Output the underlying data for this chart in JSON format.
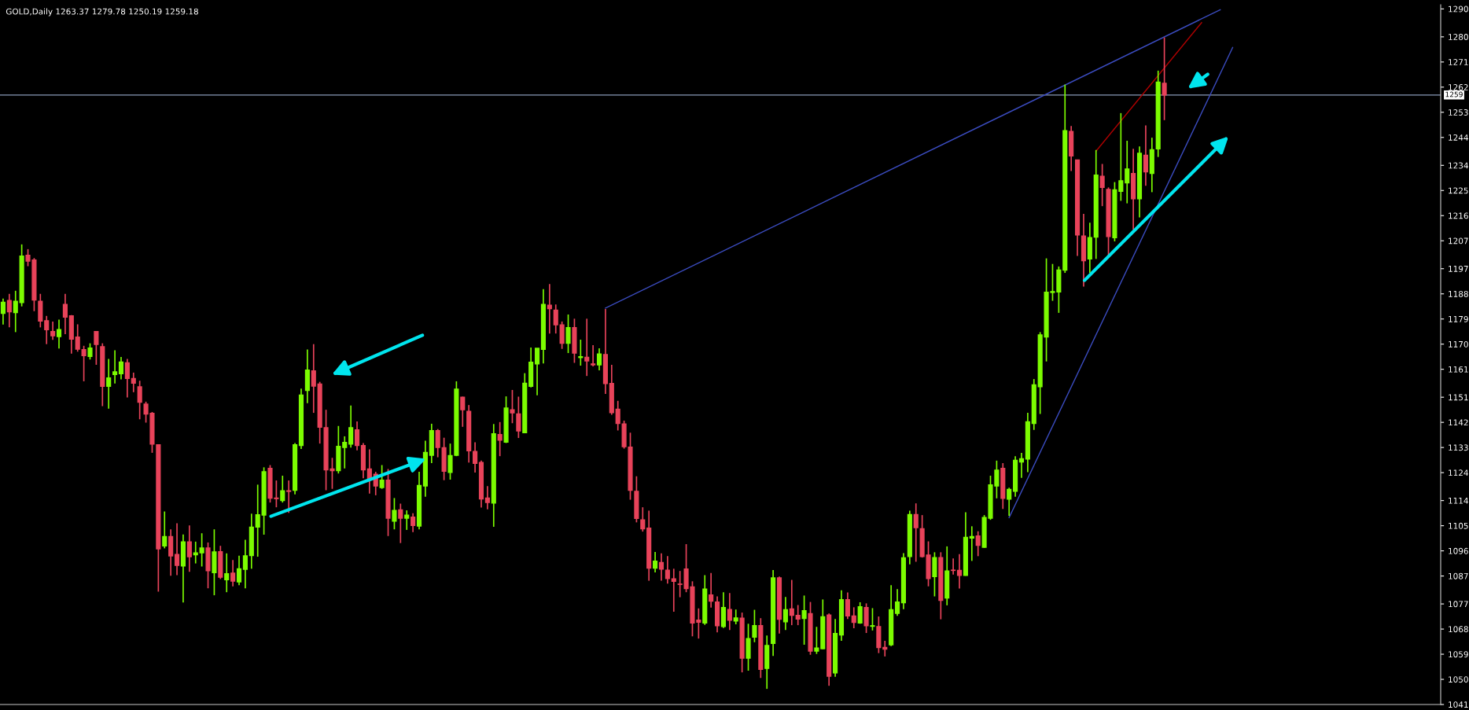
{
  "chart_data": {
    "type": "candlestick",
    "title": "GOLD,Daily 1263.37 1279.78 1250.19 1259.18",
    "categories": [
      null,
      null,
      null,
      null,
      null,
      null,
      null,
      null,
      null,
      null,
      null,
      null,
      null,
      null,
      null,
      null,
      null,
      null,
      null,
      null,
      null,
      null,
      null,
      null,
      null,
      null,
      null,
      null,
      null,
      null,
      null,
      null,
      null,
      null,
      null,
      null,
      null,
      null,
      null,
      null,
      null,
      null,
      null,
      null,
      null,
      null,
      null,
      null,
      null,
      null,
      null,
      null,
      null,
      null,
      null,
      null,
      null,
      null,
      null,
      null,
      null,
      null,
      null,
      null,
      null,
      null,
      null,
      null,
      null,
      null,
      null,
      null,
      null,
      null,
      null,
      null,
      null,
      null,
      null,
      null,
      null,
      null,
      null,
      null,
      null,
      null,
      null,
      null,
      null,
      null,
      null,
      null,
      null,
      null,
      null,
      null,
      null,
      null,
      null,
      null,
      null,
      null,
      null,
      null,
      null,
      null,
      null,
      null,
      null,
      null,
      null,
      null,
      null,
      null,
      null,
      null,
      null,
      null,
      null,
      null,
      null,
      null,
      null,
      null,
      null,
      null,
      null,
      null,
      null,
      null,
      null,
      null,
      null,
      null,
      null,
      null,
      null,
      null,
      null,
      null,
      null,
      null,
      null,
      null,
      null,
      null,
      null,
      null,
      null,
      null,
      null,
      null,
      null,
      null,
      null,
      null,
      null,
      null,
      null,
      null,
      null,
      null,
      null,
      null,
      null,
      null,
      null,
      null,
      null,
      null,
      null,
      null,
      null,
      null,
      null,
      null,
      null,
      null,
      null,
      null,
      null,
      null,
      null,
      null,
      null,
      null,
      null,
      null,
      null,
      null,
      null,
      null,
      null,
      null,
      null,
      null,
      null,
      null,
      null,
      null,
      null,
      null,
      null,
      null,
      null,
      null,
      null,
      null,
      null,
      null,
      null,
      null,
      null,
      null,
      null,
      null,
      null,
      null,
      null,
      null,
      null,
      null,
      null,
      null,
      null,
      null,
      null,
      null,
      null,
      null,
      null,
      null
    ],
    "ohlc": [
      [
        1181.0,
        1186.3,
        1177.0,
        1185.0
      ],
      [
        1185.6,
        1188.0,
        1176.0,
        1181.6
      ],
      [
        1181.3,
        1189.1,
        1174.3,
        1185.3
      ],
      [
        1184.9,
        1205.7,
        1183.5,
        1201.5
      ],
      [
        1201.8,
        1204.0,
        1197.9,
        1199.7
      ],
      [
        1200.1,
        1200.8,
        1181.8,
        1185.8
      ],
      [
        1185.3,
        1188.0,
        1176.0,
        1178.3
      ],
      [
        1178.4,
        1180.1,
        1170.0,
        1175.2
      ],
      [
        1174.5,
        1178.1,
        1171.5,
        1173.0
      ],
      [
        1172.7,
        1178.8,
        1168.4,
        1175.2
      ],
      [
        1184.2,
        1188.0,
        1173.6,
        1179.7
      ],
      [
        1180.1,
        1180.4,
        1166.6,
        1171.8
      ],
      [
        1172.5,
        1177.1,
        1167.3,
        1168.2
      ],
      [
        1168.0,
        1169.4,
        1156.7,
        1165.9
      ],
      [
        1165.6,
        1170.3,
        1164.5,
        1168.6
      ],
      [
        1174.5,
        1174.7,
        1162.6,
        1169.9
      ],
      [
        1169.1,
        1170.3,
        1147.8,
        1154.9
      ],
      [
        1154.9,
        1164.7,
        1146.9,
        1157.9
      ],
      [
        1159.1,
        1167.8,
        1155.9,
        1160.1
      ],
      [
        1159.4,
        1165.4,
        1157.4,
        1163.6
      ],
      [
        1163.3,
        1164.7,
        1150.9,
        1157.7
      ],
      [
        1157.7,
        1159.8,
        1152.8,
        1156.0
      ],
      [
        1154.7,
        1156.9,
        1143.1,
        1149.2
      ],
      [
        1148.5,
        1149.4,
        1141.9,
        1145.0
      ],
      [
        1145.2,
        1145.7,
        1131.1,
        1134.2
      ],
      [
        1134.0,
        1134.0,
        1081.4,
        1096.7
      ],
      [
        1097.8,
        1110.1,
        1096.9,
        1101.1
      ],
      [
        1101.1,
        1103.7,
        1087.1,
        1094.2
      ],
      [
        1094.7,
        1105.9,
        1087.3,
        1090.8
      ],
      [
        1090.6,
        1101.9,
        1077.5,
        1099.2
      ],
      [
        1099.2,
        1105.1,
        1088.5,
        1093.9
      ],
      [
        1094.6,
        1099.3,
        1091.5,
        1095.3
      ],
      [
        1095.3,
        1102.3,
        1090.4,
        1097.0
      ],
      [
        1097.0,
        1099.0,
        1082.6,
        1088.9
      ],
      [
        1088.2,
        1103.7,
        1080.1,
        1095.6
      ],
      [
        1095.7,
        1097.8,
        1085.9,
        1086.6
      ],
      [
        1085.7,
        1095.1,
        1081.2,
        1087.8
      ],
      [
        1088.0,
        1092.7,
        1083.3,
        1085.2
      ],
      [
        1084.9,
        1094.3,
        1083.7,
        1089.6
      ],
      [
        1089.4,
        1100.0,
        1082.6,
        1094.2
      ],
      [
        1094.3,
        1109.3,
        1089.6,
        1104.5
      ],
      [
        1104.5,
        1119.7,
        1093.9,
        1108.9
      ],
      [
        1108.8,
        1125.9,
        1101.8,
        1124.3
      ],
      [
        1125.5,
        1126.7,
        1113.3,
        1114.9
      ],
      [
        1114.9,
        1121.2,
        1111.6,
        1114.7
      ],
      [
        1114.0,
        1122.9,
        1113.3,
        1117.5
      ],
      [
        1117.5,
        1121.2,
        1109.6,
        1117.3
      ],
      [
        1117.7,
        1134.6,
        1116.2,
        1134.0
      ],
      [
        1133.7,
        1154.1,
        1132.5,
        1151.8
      ],
      [
        1153.4,
        1168.1,
        1148.9,
        1160.7
      ],
      [
        1160.4,
        1170.0,
        1145.4,
        1155.0
      ],
      [
        1155.7,
        1156.5,
        1134.4,
        1140.3
      ],
      [
        1140.1,
        1146.5,
        1117.7,
        1125.0
      ],
      [
        1125.3,
        1129.3,
        1118.2,
        1124.7
      ],
      [
        1124.7,
        1140.7,
        1123.7,
        1133.4
      ],
      [
        1133.0,
        1137.0,
        1125.5,
        1134.8
      ],
      [
        1134.2,
        1148.0,
        1133.0,
        1140.1
      ],
      [
        1139.3,
        1142.3,
        1132.0,
        1133.7
      ],
      [
        1133.7,
        1134.6,
        1122.0,
        1125.0
      ],
      [
        1125.3,
        1132.3,
        1116.5,
        1121.8
      ],
      [
        1123.4,
        1124.3,
        1115.9,
        1119.2
      ],
      [
        1118.7,
        1126.7,
        1118.2,
        1121.3
      ],
      [
        1121.3,
        1125.3,
        1101.3,
        1107.7
      ],
      [
        1106.6,
        1114.9,
        1103.7,
        1110.5
      ],
      [
        1110.7,
        1112.9,
        1098.8,
        1107.7
      ],
      [
        1107.7,
        1110.5,
        1103.5,
        1108.8
      ],
      [
        1108.1,
        1109.5,
        1102.7,
        1105.1
      ],
      [
        1104.9,
        1124.3,
        1103.7,
        1119.4
      ],
      [
        1119.2,
        1135.4,
        1115.4,
        1131.2
      ],
      [
        1130.2,
        1141.5,
        1127.4,
        1139.0
      ],
      [
        1139.0,
        1139.6,
        1129.5,
        1133.0
      ],
      [
        1132.9,
        1136.5,
        1121.3,
        1124.5
      ],
      [
        1124.1,
        1134.4,
        1121.5,
        1130.1
      ],
      [
        1130.2,
        1156.7,
        1129.9,
        1153.9
      ],
      [
        1151.0,
        1151.2,
        1140.4,
        1146.5
      ],
      [
        1145.9,
        1148.2,
        1127.6,
        1131.8
      ],
      [
        1131.6,
        1134.9,
        1124.0,
        1127.3
      ],
      [
        1127.6,
        1128.3,
        1111.5,
        1114.6
      ],
      [
        1114.9,
        1119.2,
        1110.9,
        1113.3
      ],
      [
        1113.1,
        1141.4,
        1104.6,
        1137.9
      ],
      [
        1137.6,
        1142.1,
        1129.9,
        1135.6
      ],
      [
        1134.9,
        1151.3,
        1134.6,
        1147.1
      ],
      [
        1146.5,
        1153.6,
        1141.7,
        1145.4
      ],
      [
        1145.0,
        1151.2,
        1136.4,
        1138.9
      ],
      [
        1138.3,
        1159.6,
        1138.1,
        1156.0
      ],
      [
        1154.9,
        1168.8,
        1154.5,
        1163.5
      ],
      [
        1162.9,
        1168.5,
        1151.7,
        1168.5
      ],
      [
        1168.1,
        1189.7,
        1163.1,
        1184.2
      ],
      [
        1183.9,
        1191.5,
        1173.8,
        1182.7
      ],
      [
        1182.2,
        1184.2,
        1173.8,
        1176.9
      ],
      [
        1176.9,
        1178.1,
        1168.3,
        1170.3
      ],
      [
        1170.3,
        1180.6,
        1166.8,
        1175.9
      ],
      [
        1175.9,
        1179.1,
        1163.3,
        1166.8
      ],
      [
        1165.2,
        1171.6,
        1162.3,
        1165.5
      ],
      [
        1165.3,
        1179.1,
        1158.6,
        1164.0
      ],
      [
        1162.9,
        1169.6,
        1162.0,
        1162.6
      ],
      [
        1162.6,
        1168.5,
        1160.6,
        1166.5
      ],
      [
        1166.3,
        1182.6,
        1152.2,
        1155.9
      ],
      [
        1155.9,
        1162.6,
        1144.7,
        1145.5
      ],
      [
        1146.7,
        1149.7,
        1139.1,
        1141.6
      ],
      [
        1141.4,
        1142.6,
        1132.6,
        1133.3
      ],
      [
        1133.1,
        1138.3,
        1114.3,
        1117.7
      ],
      [
        1117.3,
        1122.7,
        1106.2,
        1107.6
      ],
      [
        1107.1,
        1111.6,
        1102.9,
        1103.9
      ],
      [
        1104.1,
        1110.4,
        1085.3,
        1089.8
      ],
      [
        1089.8,
        1095.6,
        1088.3,
        1092.3
      ],
      [
        1091.8,
        1095.1,
        1085.3,
        1089.5
      ],
      [
        1089.1,
        1094.1,
        1084.3,
        1086.1
      ],
      [
        1086.0,
        1089.6,
        1074.2,
        1085.1
      ],
      [
        1084.1,
        1088.8,
        1079.4,
        1084.0
      ],
      [
        1089.5,
        1098.4,
        1081.2,
        1082.5
      ],
      [
        1083.1,
        1085.1,
        1065.4,
        1070.2
      ],
      [
        1071.2,
        1075.4,
        1064.6,
        1070.5
      ],
      [
        1070.2,
        1087.3,
        1069.5,
        1082.3
      ],
      [
        1080.2,
        1088.1,
        1075.7,
        1078.0
      ],
      [
        1077.7,
        1079.7,
        1066.8,
        1069.2
      ],
      [
        1068.9,
        1081.2,
        1068.4,
        1075.7
      ],
      [
        1075.0,
        1080.9,
        1067.7,
        1071.2
      ],
      [
        1070.9,
        1075.0,
        1069.7,
        1072.0
      ],
      [
        1071.9,
        1073.9,
        1052.5,
        1057.6
      ],
      [
        1057.6,
        1069.9,
        1053.1,
        1064.6
      ],
      [
        1065.1,
        1074.9,
        1063.3,
        1069.2
      ],
      [
        1069.2,
        1071.9,
        1050.5,
        1053.6
      ],
      [
        1053.9,
        1065.7,
        1046.6,
        1062.1
      ],
      [
        1062.9,
        1089.1,
        1058.4,
        1086.3
      ],
      [
        1086.3,
        1086.8,
        1066.4,
        1071.5
      ],
      [
        1070.6,
        1079.5,
        1067.7,
        1074.9
      ],
      [
        1075.2,
        1085.6,
        1069.4,
        1072.9
      ],
      [
        1072.9,
        1076.6,
        1069.4,
        1071.6
      ],
      [
        1071.8,
        1080.0,
        1062.4,
        1074.6
      ],
      [
        1073.5,
        1077.7,
        1058.8,
        1060.1
      ],
      [
        1060.1,
        1068.8,
        1059.1,
        1061.2
      ],
      [
        1061.0,
        1078.6,
        1060.8,
        1072.4
      ],
      [
        1073.0,
        1073.6,
        1047.7,
        1051.1
      ],
      [
        1052.3,
        1071.6,
        1050.9,
        1066.4
      ],
      [
        1065.9,
        1081.9,
        1063.8,
        1078.5
      ],
      [
        1078.5,
        1081.1,
        1071.6,
        1072.7
      ],
      [
        1072.7,
        1075.8,
        1068.3,
        1070.4
      ],
      [
        1070.2,
        1077.6,
        1069.9,
        1076.0
      ],
      [
        1075.7,
        1077.2,
        1066.6,
        1069.2
      ],
      [
        1069.0,
        1075.5,
        1067.5,
        1069.2
      ],
      [
        1068.9,
        1072.5,
        1059.4,
        1061.4
      ],
      [
        1061.4,
        1063.8,
        1058.2,
        1060.8
      ],
      [
        1062.4,
        1083.7,
        1061.9,
        1074.9
      ],
      [
        1073.6,
        1082.3,
        1072.7,
        1077.7
      ],
      [
        1077.4,
        1095.2,
        1075.1,
        1093.5
      ],
      [
        1094.0,
        1110.4,
        1091.2,
        1109.0
      ],
      [
        1109.0,
        1113.0,
        1092.1,
        1104.3
      ],
      [
        1103.9,
        1108.8,
        1093.6,
        1094.0
      ],
      [
        1094.5,
        1099.4,
        1083.3,
        1086.1
      ],
      [
        1086.8,
        1095.5,
        1079.7,
        1093.6
      ],
      [
        1093.6,
        1095.5,
        1071.5,
        1078.3
      ],
      [
        1079.1,
        1097.6,
        1076.5,
        1088.8
      ],
      [
        1089.1,
        1093.3,
        1087.5,
        1089.0
      ],
      [
        1089.0,
        1094.8,
        1082.5,
        1087.2
      ],
      [
        1087.2,
        1109.8,
        1087.1,
        1100.8
      ],
      [
        1100.6,
        1104.8,
        1092.4,
        1101.1
      ],
      [
        1101.3,
        1103.0,
        1094.1,
        1098.0
      ],
      [
        1097.3,
        1108.8,
        1097.1,
        1107.9
      ],
      [
        1107.7,
        1122.9,
        1107.1,
        1119.6
      ],
      [
        1119.2,
        1128.3,
        1114.8,
        1124.9
      ],
      [
        1125.5,
        1127.4,
        1111.0,
        1114.8
      ],
      [
        1114.5,
        1118.6,
        1108.5,
        1118.0
      ],
      [
        1117.3,
        1129.9,
        1115.4,
        1128.4
      ],
      [
        1127.8,
        1131.1,
        1122.1,
        1129.0
      ],
      [
        1128.9,
        1145.4,
        1124.2,
        1142.2
      ],
      [
        1141.6,
        1157.5,
        1139.3,
        1155.4
      ],
      [
        1154.8,
        1174.3,
        1145.0,
        1173.3
      ],
      [
        1172.6,
        1200.7,
        1163.8,
        1188.6
      ],
      [
        1188.5,
        1198.7,
        1185.5,
        1188.8
      ],
      [
        1188.7,
        1197.8,
        1181.2,
        1196.5
      ],
      [
        1196.5,
        1262.9,
        1195.5,
        1246.4
      ],
      [
        1246.1,
        1248.1,
        1232.0,
        1237.4
      ],
      [
        1235.9,
        1235.9,
        1201.6,
        1209.1
      ],
      [
        1208.7,
        1216.6,
        1190.6,
        1199.9
      ],
      [
        1200.5,
        1213.5,
        1195.5,
        1208.1
      ],
      [
        1208.3,
        1239.5,
        1200.5,
        1230.5
      ],
      [
        1230.1,
        1234.5,
        1219.4,
        1226.1
      ],
      [
        1225.4,
        1226.1,
        1201.6,
        1208.5
      ],
      [
        1208.1,
        1228.0,
        1206.8,
        1225.2
      ],
      [
        1224.7,
        1252.7,
        1221.3,
        1228.5
      ],
      [
        1227.7,
        1242.8,
        1220.4,
        1232.7
      ],
      [
        1231.1,
        1239.9,
        1211.0,
        1222.0
      ],
      [
        1222.0,
        1240.8,
        1215.4,
        1238.3
      ],
      [
        1237.6,
        1248.3,
        1226.7,
        1231.7
      ],
      [
        1231.1,
        1243.9,
        1224.4,
        1239.6
      ],
      [
        1239.9,
        1267.9,
        1237.0,
        1263.8
      ],
      [
        1263.37,
        1279.78,
        1250.19,
        1259.18
      ],
      null,
      null,
      null,
      null,
      null,
      null,
      null,
      null,
      null,
      null,
      null,
      null,
      null,
      null,
      null,
      null,
      null,
      null,
      null,
      null,
      null,
      null,
      null,
      null,
      null,
      null,
      null,
      null,
      null,
      null,
      null,
      null,
      null,
      null,
      null,
      null,
      null,
      null,
      null,
      null,
      null,
      null,
      null,
      null
    ],
    "colors": [
      "#7cfc00",
      "#e8435a",
      "#7cfc00",
      "#7cfc00",
      "#e8435a",
      "#e8435a",
      "#e8435a",
      "#e8435a",
      "#e8435a",
      "#7cfc00",
      "#e8435a",
      "#e8435a",
      "#e8435a",
      "#e8435a",
      "#7cfc00",
      "#e8435a",
      "#e8435a",
      "#7cfc00",
      "#7cfc00",
      "#7cfc00",
      "#e8435a",
      "#e8435a",
      "#e8435a",
      "#e8435a",
      "#e8435a",
      "#e8435a",
      "#7cfc00",
      "#e8435a",
      "#e8435a",
      "#7cfc00",
      "#e8435a",
      "#7cfc00",
      "#7cfc00",
      "#e8435a",
      "#7cfc00",
      "#e8435a",
      "#7cfc00",
      "#e8435a",
      "#7cfc00",
      "#7cfc00",
      "#7cfc00",
      "#7cfc00",
      "#7cfc00",
      "#e8435a",
      "#e8435a",
      "#7cfc00",
      "#e8435a",
      "#7cfc00",
      "#7cfc00",
      "#7cfc00",
      "#e8435a",
      "#e8435a",
      "#e8435a",
      "#e8435a",
      "#7cfc00",
      "#7cfc00",
      "#7cfc00",
      "#e8435a",
      "#e8435a",
      "#e8435a",
      "#e8435a",
      "#7cfc00",
      "#e8435a",
      "#7cfc00",
      "#e8435a",
      "#7cfc00",
      "#e8435a",
      "#7cfc00",
      "#7cfc00",
      "#7cfc00",
      "#e8435a",
      "#e8435a",
      "#7cfc00",
      "#7cfc00",
      "#e8435a",
      "#e8435a",
      "#e8435a",
      "#e8435a",
      "#e8435a",
      "#7cfc00",
      "#e8435a",
      "#7cfc00",
      "#e8435a",
      "#e8435a",
      "#7cfc00",
      "#7cfc00",
      "#7cfc00",
      "#7cfc00",
      "#e8435a",
      "#e8435a",
      "#e8435a",
      "#7cfc00",
      "#e8435a",
      "#7cfc00",
      "#e8435a",
      "#e8435a",
      "#7cfc00",
      "#e8435a",
      "#e8435a",
      "#e8435a",
      "#e8435a",
      "#e8435a",
      "#e8435a",
      "#e8435a",
      "#e8435a",
      "#7cfc00",
      "#e8435a",
      "#e8435a",
      "#e8435a",
      "#e8435a",
      "#e8435a",
      "#e8435a",
      "#e8435a",
      "#7cfc00",
      "#e8435a",
      "#e8435a",
      "#7cfc00",
      "#e8435a",
      "#7cfc00",
      "#e8435a",
      "#7cfc00",
      "#7cfc00",
      "#e8435a",
      "#7cfc00",
      "#7cfc00",
      "#e8435a",
      "#7cfc00",
      "#e8435a",
      "#e8435a",
      "#7cfc00",
      "#e8435a",
      "#7cfc00",
      "#7cfc00",
      "#e8435a",
      "#7cfc00",
      "#7cfc00",
      "#e8435a",
      "#e8435a",
      "#7cfc00",
      "#e8435a",
      "#7cfc00",
      "#e8435a",
      "#e8435a",
      "#7cfc00",
      "#7cfc00",
      "#7cfc00",
      "#7cfc00",
      "#e8435a",
      "#e8435a",
      "#e8435a",
      "#7cfc00",
      "#e8435a",
      "#7cfc00",
      "#e8435a",
      "#e8435a",
      "#7cfc00",
      "#7cfc00",
      "#e8435a",
      "#7cfc00",
      "#7cfc00",
      "#7cfc00",
      "#e8435a",
      "#7cfc00",
      "#7cfc00",
      "#7cfc00",
      "#7cfc00",
      "#7cfc00",
      "#7cfc00",
      "#7cfc00",
      "#7cfc00",
      "#7cfc00",
      "#7cfc00",
      "#e8435a",
      "#e8435a",
      "#e8435a",
      "#7cfc00",
      "#7cfc00",
      "#e8435a",
      "#e8435a",
      "#7cfc00",
      "#7cfc00",
      "#7cfc00",
      "#e8435a",
      "#7cfc00",
      "#e8435a",
      "#7cfc00",
      "#7cfc00",
      "#e8435a",
      null,
      null,
      null,
      null,
      null,
      null,
      null,
      null,
      null,
      null,
      null,
      null,
      null,
      null,
      null,
      null,
      null,
      null,
      null,
      null,
      null,
      null,
      null,
      null,
      null,
      null,
      null,
      null,
      null,
      null,
      null,
      null,
      null,
      null,
      null,
      null,
      null,
      null,
      null,
      null,
      null,
      null,
      null,
      null
    ],
    "series": [
      {
        "type": "line",
        "color": "#3b4cc0",
        "values": [
          null,
          null,
          null,
          null,
          null,
          null,
          null,
          null,
          null,
          null,
          null,
          null,
          null,
          null,
          null,
          null,
          null,
          null,
          null,
          null,
          null,
          null,
          null,
          null,
          null,
          null,
          null,
          null,
          null,
          null,
          null,
          null,
          null,
          null,
          null,
          null,
          null,
          null,
          null,
          null,
          null,
          null,
          null,
          null,
          null,
          null,
          null,
          null,
          null,
          null,
          null,
          null,
          null,
          null,
          null,
          null,
          null,
          null,
          null,
          null,
          null,
          null,
          null,
          null,
          null,
          null,
          null,
          null,
          null,
          null,
          null,
          null,
          null,
          null,
          null,
          null,
          null,
          null,
          null,
          null,
          null,
          null,
          null,
          null,
          null,
          null,
          null,
          null,
          null,
          null,
          null,
          null,
          null,
          null,
          null,
          null,
          null,
          1182.9,
          null,
          null,
          null,
          null,
          null,
          null,
          null,
          null,
          null,
          null,
          null,
          null,
          null,
          null,
          null,
          null,
          null,
          null,
          null,
          null,
          null,
          null,
          null,
          null,
          null,
          null,
          null,
          null,
          null,
          null,
          null,
          null,
          null,
          null,
          null,
          null,
          null,
          null,
          null,
          null,
          null,
          null,
          null,
          null,
          null,
          null,
          null,
          null,
          null,
          null,
          null,
          null,
          null,
          null,
          null,
          null,
          null,
          null,
          null,
          null,
          null,
          null,
          null,
          null,
          null,
          null,
          null,
          null,
          null,
          null,
          null,
          null,
          null,
          null,
          null,
          null,
          null,
          null,
          null,
          null,
          null,
          null,
          null,
          null,
          null,
          null,
          null,
          null,
          null,
          null,
          null,
          null,
          null,
          null,
          null,
          null,
          null,
          null,
          1289.7,
          null,
          null,
          null,
          null,
          null,
          null,
          null,
          null,
          null,
          null,
          null,
          null,
          null,
          null,
          null,
          null,
          null,
          null,
          null,
          null,
          null,
          null,
          null,
          null,
          null,
          null,
          null,
          null,
          null,
          null,
          null,
          null,
          null,
          null,
          null
        ]
      },
      {
        "type": "line",
        "color": "#3b4cc0",
        "values": [
          null,
          null,
          null,
          null,
          null,
          null,
          null,
          null,
          null,
          null,
          null,
          null,
          null,
          null,
          null,
          null,
          null,
          null,
          null,
          null,
          null,
          null,
          null,
          null,
          null,
          null,
          null,
          null,
          null,
          null,
          null,
          null,
          null,
          null,
          null,
          null,
          null,
          null,
          null,
          null,
          null,
          null,
          null,
          null,
          null,
          null,
          null,
          null,
          null,
          null,
          null,
          null,
          null,
          null,
          null,
          null,
          null,
          null,
          null,
          null,
          null,
          null,
          null,
          null,
          null,
          null,
          null,
          null,
          null,
          null,
          null,
          null,
          null,
          null,
          null,
          null,
          null,
          null,
          null,
          null,
          null,
          null,
          null,
          null,
          null,
          null,
          null,
          null,
          null,
          null,
          null,
          null,
          null,
          null,
          null,
          null,
          null,
          null,
          null,
          null,
          null,
          null,
          null,
          null,
          null,
          null,
          null,
          null,
          null,
          null,
          null,
          null,
          null,
          null,
          null,
          null,
          null,
          null,
          null,
          null,
          null,
          null,
          null,
          null,
          null,
          null,
          null,
          null,
          null,
          null,
          null,
          null,
          null,
          null,
          null,
          null,
          null,
          null,
          null,
          null,
          null,
          null,
          null,
          null,
          null,
          null,
          null,
          null,
          null,
          null,
          null,
          null,
          null,
          null,
          null,
          null,
          null,
          null,
          null,
          null,
          null,
          null,
          1107.9,
          null,
          null,
          null,
          null,
          null,
          null,
          null,
          null,
          null,
          null,
          null,
          null,
          null,
          null,
          null,
          null,
          null,
          null,
          null,
          null,
          null,
          null,
          null,
          null,
          null,
          null,
          null,
          null,
          null,
          null,
          null,
          null,
          null,
          null,
          null,
          1276.2,
          null,
          null,
          null,
          null,
          null,
          null,
          null,
          null,
          null,
          null,
          null,
          null,
          null,
          null,
          null,
          null,
          null,
          null,
          null,
          null,
          null,
          null,
          null,
          null,
          null,
          null,
          null,
          null,
          null,
          null,
          null,
          null,
          null
        ]
      },
      {
        "type": "line",
        "color": "#b00000",
        "values": [
          null,
          null,
          null,
          null,
          null,
          null,
          null,
          null,
          null,
          null,
          null,
          null,
          null,
          null,
          null,
          null,
          null,
          null,
          null,
          null,
          null,
          null,
          null,
          null,
          null,
          null,
          null,
          null,
          null,
          null,
          null,
          null,
          null,
          null,
          null,
          null,
          null,
          null,
          null,
          null,
          null,
          null,
          null,
          null,
          null,
          null,
          null,
          null,
          null,
          null,
          null,
          null,
          null,
          null,
          null,
          null,
          null,
          null,
          null,
          null,
          null,
          null,
          null,
          null,
          null,
          null,
          null,
          null,
          null,
          null,
          null,
          null,
          null,
          null,
          null,
          null,
          null,
          null,
          null,
          null,
          null,
          null,
          null,
          null,
          null,
          null,
          null,
          null,
          null,
          null,
          null,
          null,
          null,
          null,
          null,
          null,
          null,
          null,
          null,
          null,
          null,
          null,
          null,
          null,
          null,
          null,
          null,
          null,
          null,
          null,
          null,
          null,
          null,
          null,
          null,
          null,
          null,
          null,
          null,
          null,
          null,
          null,
          null,
          null,
          null,
          null,
          null,
          null,
          null,
          null,
          null,
          null,
          null,
          null,
          null,
          null,
          null,
          null,
          null,
          null,
          null,
          null,
          null,
          null,
          null,
          null,
          null,
          null,
          null,
          null,
          null,
          null,
          null,
          null,
          null,
          null,
          null,
          null,
          null,
          null,
          null,
          null,
          null,
          null,
          null,
          null,
          null,
          null,
          null,
          null,
          null,
          null,
          null,
          null,
          null,
          null,
          1239.1,
          null,
          null,
          null,
          null,
          null,
          null,
          null,
          null,
          null,
          null,
          null,
          null,
          null,
          null,
          null,
          null,
          1285.1,
          null,
          null,
          null,
          null,
          null,
          null,
          null,
          null,
          null,
          null,
          null,
          null,
          null,
          null,
          null,
          null,
          null,
          null,
          null,
          null,
          null,
          null,
          null,
          null,
          null,
          null,
          null,
          null,
          null,
          null,
          null,
          null,
          null,
          null,
          null,
          null,
          null,
          null
        ]
      }
    ],
    "ylim": [
      1041,
      1291.5
    ],
    "yticks": [
      1290,
      1280,
      1271,
      1262,
      1253,
      1244,
      1234,
      1225,
      1216,
      1207,
      1197,
      1188,
      1179,
      1170,
      1161,
      1151,
      1142,
      1133,
      1124,
      1114,
      1105,
      1096,
      1087,
      1077,
      1068,
      1059,
      1050,
      1041
    ],
    "ref_lines": [
      {
        "axis": "y",
        "value": 1259.18,
        "label": "1259",
        "color": "#8a9ab8"
      }
    ],
    "tick_labels": "y",
    "grid": false,
    "legend": false
  }
}
